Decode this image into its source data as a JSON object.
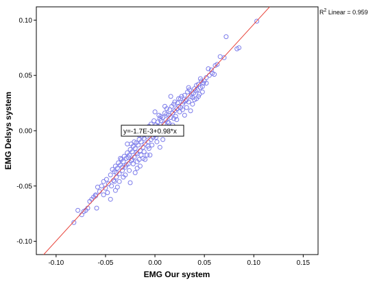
{
  "chart_data": {
    "type": "scatter",
    "xlabel": "EMG Our system",
    "ylabel": "EMG Delsys system",
    "xlim": [
      -0.12,
      0.165
    ],
    "ylim": [
      -0.112,
      0.112
    ],
    "xticks": [
      -0.1,
      -0.05,
      0.0,
      0.05,
      0.1,
      0.15
    ],
    "xtick_labels": [
      "-0.10",
      "-0.05",
      "0.00",
      "0.05",
      "0.10",
      "0.15"
    ],
    "yticks": [
      -0.1,
      -0.05,
      0.0,
      0.05,
      0.1
    ],
    "ytick_labels": [
      "-0.10",
      "-0.05",
      "0.00",
      "0.05",
      "0.10"
    ],
    "grid": false,
    "fit_line": {
      "intercept": -0.0017,
      "slope": 0.98,
      "color": "#e8453c"
    },
    "annotations": {
      "r2": {
        "prefix": "R",
        "sup": "2",
        "suffix": " Linear = 0.959"
      },
      "equation": "y=-1.7E-3+0.98*x"
    },
    "marker_color": "#7b7bea",
    "points": [
      [
        0.103,
        0.099
      ],
      [
        0.085,
        0.075
      ],
      [
        0.083,
        0.074
      ],
      [
        0.072,
        0.085
      ],
      [
        0.07,
        0.066
      ],
      [
        0.063,
        0.06
      ],
      [
        0.061,
        0.059
      ],
      [
        0.06,
        0.051
      ],
      [
        0.057,
        0.055
      ],
      [
        0.054,
        0.056
      ],
      [
        0.052,
        0.048
      ],
      [
        0.05,
        0.045
      ],
      [
        0.049,
        0.043
      ],
      [
        0.048,
        0.04
      ],
      [
        0.047,
        0.045
      ],
      [
        0.046,
        0.039
      ],
      [
        0.045,
        0.033
      ],
      [
        0.044,
        0.042
      ],
      [
        0.043,
        0.037
      ],
      [
        0.042,
        0.029
      ],
      [
        0.041,
        0.036
      ],
      [
        0.04,
        0.038
      ],
      [
        0.039,
        0.034
      ],
      [
        0.038,
        0.024
      ],
      [
        0.037,
        0.033
      ],
      [
        0.036,
        0.031
      ],
      [
        0.035,
        0.037
      ],
      [
        0.034,
        0.039
      ],
      [
        0.033,
        0.035
      ],
      [
        0.032,
        0.028
      ],
      [
        0.031,
        0.027
      ],
      [
        0.03,
        0.032
      ],
      [
        0.029,
        0.026
      ],
      [
        0.028,
        0.024
      ],
      [
        0.027,
        0.031
      ],
      [
        0.026,
        0.021
      ],
      [
        0.025,
        0.017
      ],
      [
        0.024,
        0.029
      ],
      [
        0.023,
        0.025
      ],
      [
        0.022,
        0.02
      ],
      [
        0.021,
        0.013
      ],
      [
        0.02,
        0.018
      ],
      [
        0.019,
        0.024
      ],
      [
        0.018,
        0.016
      ],
      [
        0.017,
        0.022
      ],
      [
        0.016,
        0.012
      ],
      [
        0.015,
        0.019
      ],
      [
        0.014,
        0.014
      ],
      [
        0.013,
        0.008
      ],
      [
        0.012,
        0.015
      ],
      [
        0.011,
        0.01
      ],
      [
        0.01,
        0.016
      ],
      [
        0.009,
        0.006
      ],
      [
        0.008,
        0.012
      ],
      [
        0.007,
        0.003
      ],
      [
        0.006,
        0.009
      ],
      [
        0.005,
        0.011
      ],
      [
        0.004,
        0.002
      ],
      [
        0.003,
        0.008
      ],
      [
        0.002,
        -0.002
      ],
      [
        0.001,
        0.005
      ],
      [
        0.0,
        0.017
      ],
      [
        0.0,
        -0.004
      ],
      [
        -0.001,
        0.003
      ],
      [
        -0.002,
        -0.006
      ],
      [
        -0.003,
        0.001
      ],
      [
        -0.004,
        -0.008
      ],
      [
        -0.005,
        -0.003
      ],
      [
        -0.006,
        0.004
      ],
      [
        -0.007,
        -0.01
      ],
      [
        -0.008,
        -0.005
      ],
      [
        -0.009,
        0.002
      ],
      [
        -0.01,
        -0.012
      ],
      [
        -0.011,
        -0.007
      ],
      [
        -0.012,
        -0.015
      ],
      [
        -0.013,
        -0.002
      ],
      [
        -0.014,
        -0.01
      ],
      [
        -0.015,
        -0.018
      ],
      [
        -0.016,
        -0.008
      ],
      [
        -0.017,
        -0.013
      ],
      [
        -0.018,
        -0.021
      ],
      [
        -0.019,
        -0.011
      ],
      [
        -0.02,
        -0.016
      ],
      [
        -0.021,
        -0.024
      ],
      [
        -0.022,
        -0.014
      ],
      [
        -0.023,
        -0.019
      ],
      [
        -0.024,
        -0.027
      ],
      [
        -0.025,
        -0.017
      ],
      [
        -0.026,
        -0.022
      ],
      [
        -0.027,
        -0.03
      ],
      [
        -0.028,
        -0.02
      ],
      [
        -0.029,
        -0.025
      ],
      [
        -0.03,
        -0.033
      ],
      [
        -0.031,
        -0.023
      ],
      [
        -0.032,
        -0.028
      ],
      [
        -0.033,
        -0.036
      ],
      [
        -0.034,
        -0.026
      ],
      [
        -0.035,
        -0.031
      ],
      [
        -0.036,
        -0.039
      ],
      [
        -0.037,
        -0.029
      ],
      [
        -0.038,
        -0.034
      ],
      [
        -0.039,
        -0.042
      ],
      [
        -0.04,
        -0.032
      ],
      [
        -0.041,
        -0.037
      ],
      [
        -0.042,
        -0.045
      ],
      [
        -0.043,
        -0.035
      ],
      [
        -0.045,
        -0.04
      ],
      [
        -0.047,
        -0.048
      ],
      [
        -0.049,
        -0.044
      ],
      [
        -0.05,
        -0.052
      ],
      [
        -0.052,
        -0.046
      ],
      [
        -0.054,
        -0.05
      ],
      [
        -0.056,
        -0.055
      ],
      [
        -0.058,
        -0.051
      ],
      [
        -0.06,
        -0.058
      ],
      [
        -0.062,
        -0.06
      ],
      [
        -0.064,
        -0.062
      ],
      [
        -0.066,
        -0.064
      ],
      [
        -0.068,
        -0.07
      ],
      [
        -0.07,
        -0.072
      ],
      [
        -0.072,
        -0.073
      ],
      [
        -0.074,
        -0.076
      ],
      [
        -0.078,
        -0.072
      ],
      [
        -0.082,
        -0.083
      ],
      [
        -0.045,
        -0.062
      ],
      [
        -0.04,
        -0.054
      ],
      [
        -0.038,
        -0.051
      ],
      [
        -0.06,
        -0.059
      ],
      [
        -0.059,
        -0.07
      ],
      [
        -0.025,
        -0.047
      ],
      [
        -0.03,
        -0.04
      ],
      [
        -0.02,
        -0.038
      ],
      [
        -0.018,
        -0.034
      ],
      [
        -0.015,
        -0.032
      ],
      [
        -0.01,
        -0.026
      ],
      [
        -0.005,
        -0.022
      ],
      [
        0.005,
        -0.015
      ],
      [
        0.008,
        -0.008
      ],
      [
        0.01,
        0.001
      ],
      [
        0.015,
        0.003
      ],
      [
        -0.035,
        -0.025
      ],
      [
        -0.028,
        -0.012
      ],
      [
        -0.022,
        -0.03
      ],
      [
        -0.012,
        -0.025
      ],
      [
        -0.008,
        -0.022
      ],
      [
        0.002,
        -0.01
      ],
      [
        0.012,
        0.02
      ],
      [
        0.022,
        0.01
      ],
      [
        0.028,
        0.019
      ],
      [
        0.032,
        0.021
      ],
      [
        0.036,
        0.018
      ],
      [
        0.04,
        0.028
      ],
      [
        0.044,
        0.031
      ],
      [
        0.048,
        0.035
      ],
      [
        0.03,
        0.014
      ],
      [
        0.026,
        0.029
      ],
      [
        0.018,
        0.005
      ],
      [
        0.006,
        0.013
      ],
      [
        -0.003,
        -0.013
      ],
      [
        -0.006,
        -0.016
      ],
      [
        -0.014,
        -0.022
      ],
      [
        -0.018,
        -0.028
      ],
      [
        -0.026,
        -0.036
      ],
      [
        -0.032,
        -0.042
      ],
      [
        -0.036,
        -0.046
      ],
      [
        -0.044,
        -0.05
      ],
      [
        -0.048,
        -0.056
      ],
      [
        -0.052,
        -0.058
      ],
      [
        0.055,
        0.05
      ],
      [
        0.058,
        0.052
      ],
      [
        0.046,
        0.047
      ],
      [
        0.052,
        0.043
      ],
      [
        0.02,
        0.026
      ],
      [
        0.016,
        0.031
      ],
      [
        0.01,
        0.022
      ],
      [
        0.004,
        0.014
      ],
      [
        -0.001,
        0.009
      ],
      [
        -0.004,
        0.006
      ],
      [
        -0.009,
        -0.001
      ],
      [
        -0.013,
        -0.005
      ],
      [
        -0.016,
        -0.004
      ],
      [
        -0.021,
        -0.01
      ],
      [
        -0.024,
        -0.012
      ],
      [
        0.034,
        0.026
      ],
      [
        0.038,
        0.03
      ],
      [
        0.024,
        0.022
      ],
      [
        0.014,
        0.007
      ],
      [
        0.008,
        0.003
      ],
      [
        -0.002,
        0.0
      ],
      [
        -0.007,
        -0.014
      ],
      [
        -0.011,
        -0.019
      ],
      [
        -0.019,
        -0.02
      ],
      [
        -0.023,
        -0.026
      ],
      [
        -0.029,
        -0.031
      ],
      [
        -0.033,
        -0.033
      ],
      [
        -0.039,
        -0.038
      ],
      [
        -0.041,
        -0.046
      ],
      [
        0.003,
        0.004
      ],
      [
        0.001,
        -0.006
      ],
      [
        -0.016,
        -0.026
      ],
      [
        -0.027,
        -0.024
      ],
      [
        0.019,
        0.011
      ],
      [
        0.042,
        0.041
      ],
      [
        0.066,
        0.067
      ]
    ]
  }
}
